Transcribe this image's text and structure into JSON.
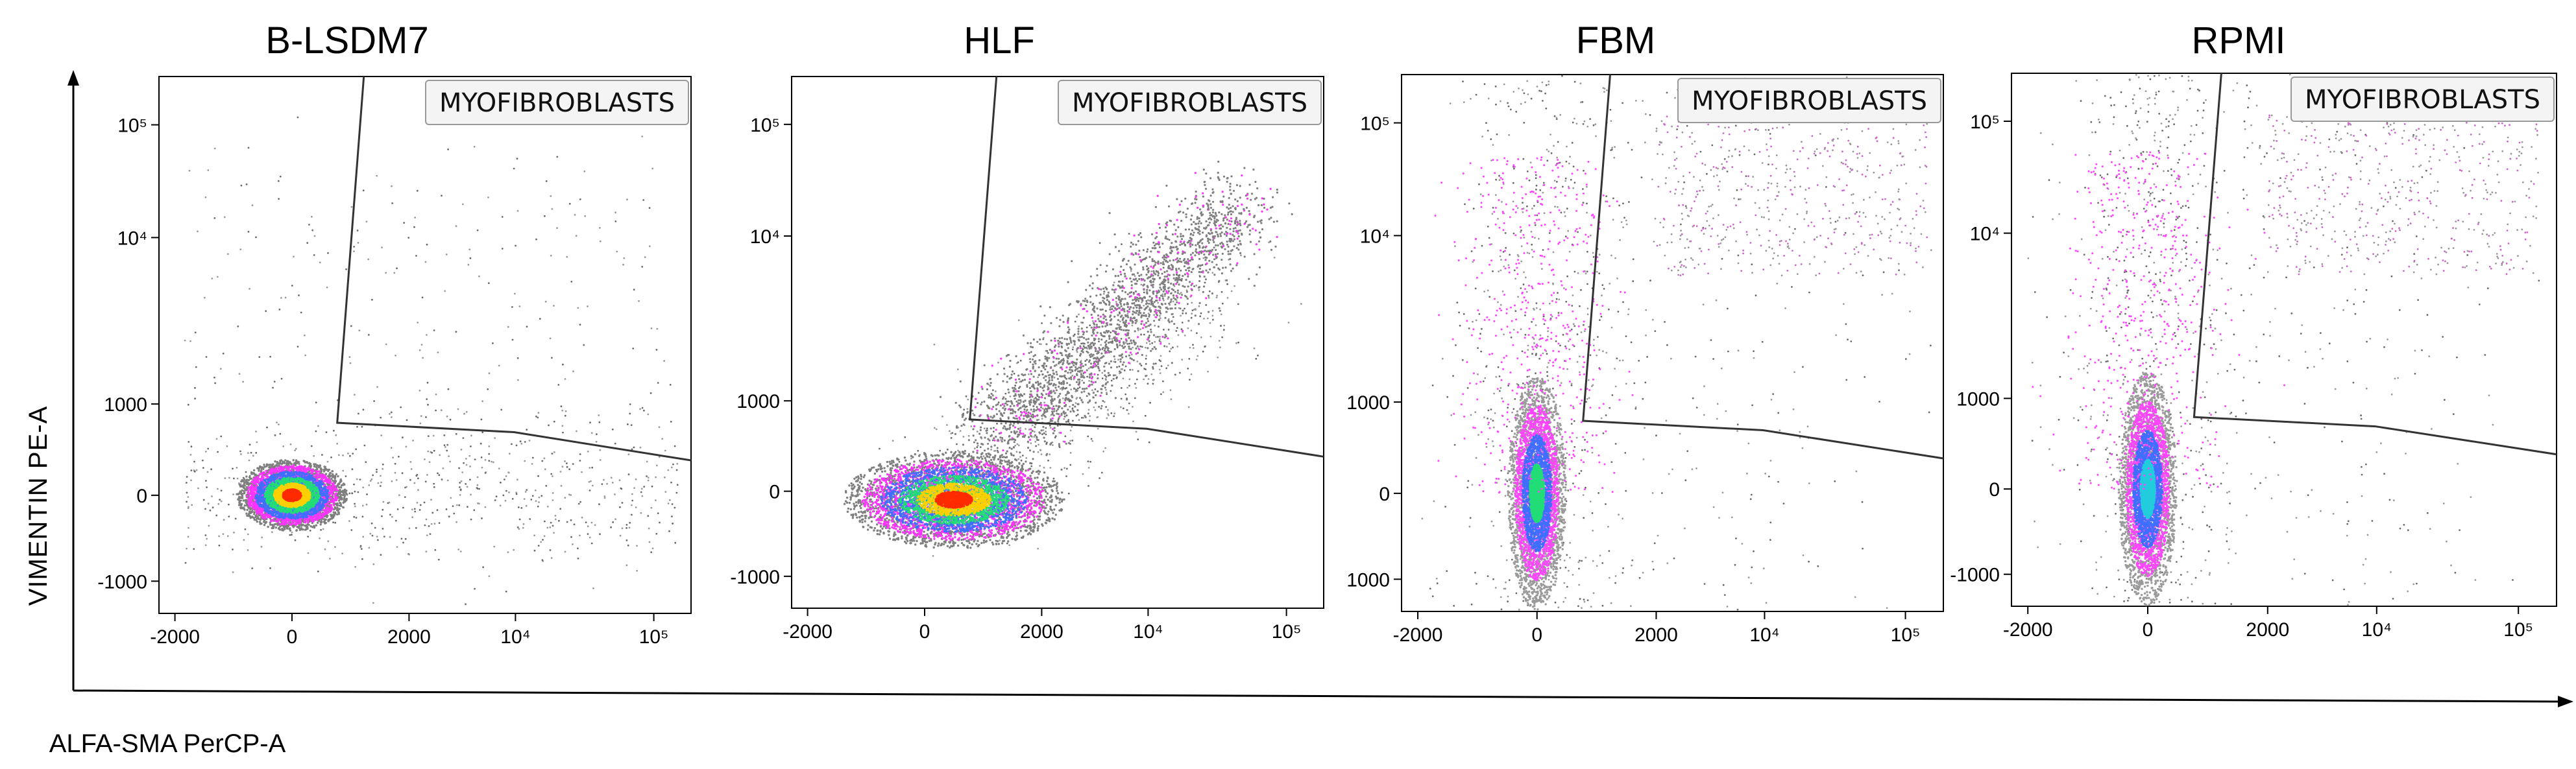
{
  "figure": {
    "y_axis_label": "VIMENTIN PE-A",
    "x_axis_label": "ALFA-SMA PerCP-A"
  },
  "colors": {
    "density_low": "#7f7f7f",
    "density_mid": "#ff33ff",
    "density_high_a": "#3f6fff",
    "density_high_b": "#22dd77",
    "density_core": "#ff2a00",
    "axis": "#000000",
    "gate": "#333333"
  },
  "chart_data": [
    {
      "type": "scatter",
      "title": "B-LSDM7",
      "gate_label": "MYOFIBROBLASTS",
      "x_ticks": [
        "-2000",
        "0",
        "2000",
        "10⁴",
        "10⁵"
      ],
      "y_ticks": [
        "10⁵",
        "10⁴",
        "1000",
        "0",
        "-1000"
      ],
      "population": {
        "center_x": 0,
        "center_y": 0,
        "spread_x": "narrow",
        "shape": "round",
        "tail": "horizontal",
        "core_color": "red"
      },
      "gate_vertices_x": [
        "1000",
        "1000",
        "10⁵+"
      ],
      "gate_vertices_y": [
        "10⁵+",
        "~700",
        "~500"
      ]
    },
    {
      "type": "scatter",
      "title": "HLF",
      "gate_label": "MYOFIBROBLASTS",
      "x_ticks": [
        "-2000",
        "0",
        "2000",
        "10⁴",
        "10⁵"
      ],
      "y_ticks": [
        "10⁵",
        "10⁴",
        "1000",
        "0",
        "-1000"
      ],
      "population": {
        "center_x": 500,
        "center_y": -100,
        "spread_x": "wide",
        "shape": "ellipse",
        "tail": "diagonal",
        "core_color": "red"
      },
      "gate_vertices_x": [
        "1000",
        "1000",
        "10⁵+"
      ],
      "gate_vertices_y": [
        "10⁵+",
        "~800",
        "~400"
      ]
    },
    {
      "type": "scatter",
      "title": "FBM",
      "gate_label": "MYOFIBROBLASTS",
      "x_ticks": [
        "-2000",
        "0",
        "2000",
        "10⁴",
        "10⁵"
      ],
      "y_ticks": [
        "10⁵",
        "10⁴",
        "1000",
        "0",
        "1000"
      ],
      "population": {
        "center_x": 0,
        "center_y": 0,
        "spread_x": "narrow",
        "shape": "vertical",
        "tail": "vertical",
        "core_color": "green"
      },
      "gate_vertices_x": [
        "1000",
        "1000",
        "10⁵+"
      ],
      "gate_vertices_y": [
        "10⁵+",
        "~800",
        "~400"
      ]
    },
    {
      "type": "scatter",
      "title": "RPMI",
      "gate_label": "MYOFIBROBLASTS",
      "x_ticks": [
        "-2000",
        "0",
        "2000",
        "10⁴",
        "10⁵"
      ],
      "y_ticks": [
        "10⁵",
        "10⁴",
        "1000",
        "0",
        "-1000"
      ],
      "population": {
        "center_x": 0,
        "center_y": 0,
        "spread_x": "narrow",
        "shape": "vertical",
        "tail": "vertical",
        "core_color": "cyan"
      },
      "gate_vertices_x": [
        "1000",
        "1000",
        "10⁵+"
      ],
      "gate_vertices_y": [
        "10⁵+",
        "~700",
        "~500"
      ]
    }
  ]
}
